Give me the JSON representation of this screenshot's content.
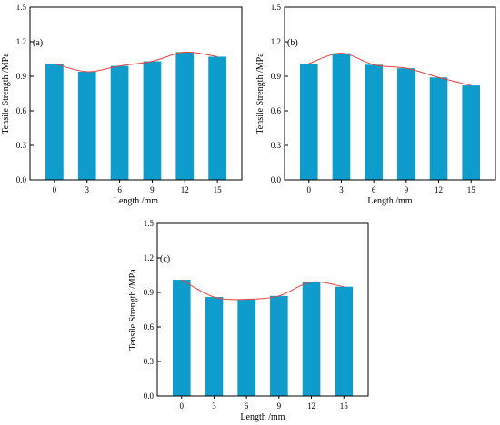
{
  "chart_data": [
    {
      "type": "bar",
      "panel_label": "(a)",
      "categories": [
        "0",
        "3",
        "6",
        "9",
        "12",
        "15"
      ],
      "values": [
        1.01,
        0.94,
        0.99,
        1.03,
        1.11,
        1.07
      ],
      "xlabel": "Length /mm",
      "ylabel": "Tensile Strength /MPa",
      "ylim": [
        0,
        1.5
      ],
      "yticks": [
        "0.0",
        "0.3",
        "0.6",
        "0.9",
        "1.2",
        "1.5"
      ],
      "bar_color": "#0e9ccd",
      "trend_color": "#e8413c",
      "grid": false
    },
    {
      "type": "bar",
      "panel_label": "(b)",
      "categories": [
        "0",
        "3",
        "6",
        "9",
        "12",
        "15"
      ],
      "values": [
        1.01,
        1.1,
        1.0,
        0.97,
        0.89,
        0.82
      ],
      "xlabel": "Length /mm",
      "ylabel": "Tensile Strength /MPa",
      "ylim": [
        0,
        1.5
      ],
      "yticks": [
        "0.0",
        "0.3",
        "0.6",
        "0.9",
        "1.2",
        "1.5"
      ],
      "bar_color": "#0e9ccd",
      "trend_color": "#e8413c",
      "grid": false
    },
    {
      "type": "bar",
      "panel_label": "(c)",
      "categories": [
        "0",
        "3",
        "6",
        "9",
        "12",
        "15"
      ],
      "values": [
        1.01,
        0.86,
        0.84,
        0.87,
        0.99,
        0.95
      ],
      "xlabel": "Length /mm",
      "ylabel": "Tensile Strength /MPa",
      "ylim": [
        0,
        1.5
      ],
      "yticks": [
        "0.0",
        "0.3",
        "0.6",
        "0.9",
        "1.2",
        "1.5"
      ],
      "bar_color": "#0e9ccd",
      "trend_color": "#e8413c",
      "grid": false
    }
  ]
}
